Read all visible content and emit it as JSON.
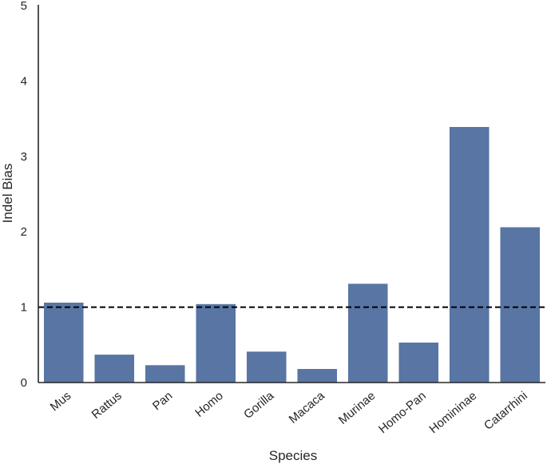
{
  "chart_data": {
    "type": "bar",
    "title": "",
    "xlabel": "Species",
    "ylabel": "Indel Bias",
    "categories": [
      "Mus",
      "Rattus",
      "Pan",
      "Homo",
      "Gorilla",
      "Macaca",
      "Murinae",
      "Homo-Pan",
      "Homininae",
      "Catarrhini"
    ],
    "values": [
      1.06,
      0.37,
      0.23,
      1.04,
      0.41,
      0.18,
      1.31,
      0.53,
      3.39,
      2.06
    ],
    "ylim": [
      0,
      5
    ],
    "yticks": [
      "0",
      "1",
      "2",
      "3",
      "4",
      "5"
    ],
    "reference_line": {
      "y": 1,
      "style": "dashed"
    },
    "grid": false,
    "bar_color": "#5875a4",
    "axis_color": "#262626"
  }
}
